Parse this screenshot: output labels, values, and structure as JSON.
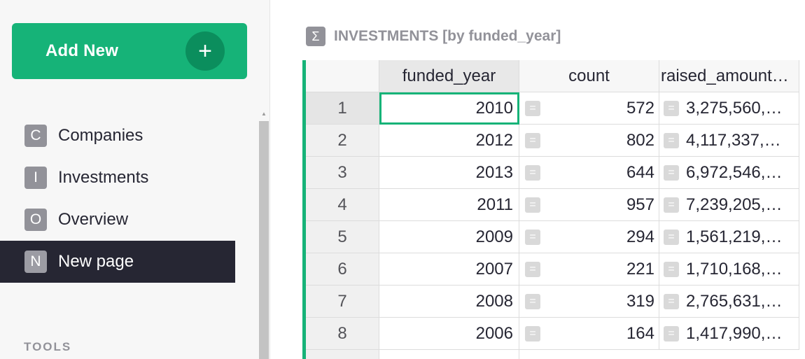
{
  "sidebar": {
    "add_new_label": "Add New",
    "add_new_icon": "+",
    "pages": [
      {
        "initial": "C",
        "label": "Companies",
        "active": false
      },
      {
        "initial": "I",
        "label": "Investments",
        "active": false
      },
      {
        "initial": "O",
        "label": "Overview",
        "active": false
      },
      {
        "initial": "N",
        "label": "New page",
        "active": true
      }
    ],
    "tools_label": "TOOLS"
  },
  "section": {
    "icon": "Σ",
    "title": "INVESTMENTS [by funded_year]"
  },
  "table": {
    "columns": [
      "funded_year",
      "count",
      "raised_amount…"
    ],
    "rows": [
      {
        "num": "1",
        "funded_year": "2010",
        "count": "572",
        "raised": "3,275,560,…"
      },
      {
        "num": "2",
        "funded_year": "2012",
        "count": "802",
        "raised": "4,117,337,…"
      },
      {
        "num": "3",
        "funded_year": "2013",
        "count": "644",
        "raised": "6,972,546,…"
      },
      {
        "num": "4",
        "funded_year": "2011",
        "count": "957",
        "raised": "7,239,205,…"
      },
      {
        "num": "5",
        "funded_year": "2009",
        "count": "294",
        "raised": "1,561,219,…"
      },
      {
        "num": "6",
        "funded_year": "2007",
        "count": "221",
        "raised": "1,710,168,…"
      },
      {
        "num": "7",
        "funded_year": "2008",
        "count": "319",
        "raised": "2,765,631,…"
      },
      {
        "num": "8",
        "funded_year": "2006",
        "count": "164",
        "raised": "1,417,990,…"
      }
    ]
  },
  "colors": {
    "accent": "#16b378",
    "accent_dark": "#0b8e5d",
    "active_page_bg": "#262633"
  }
}
